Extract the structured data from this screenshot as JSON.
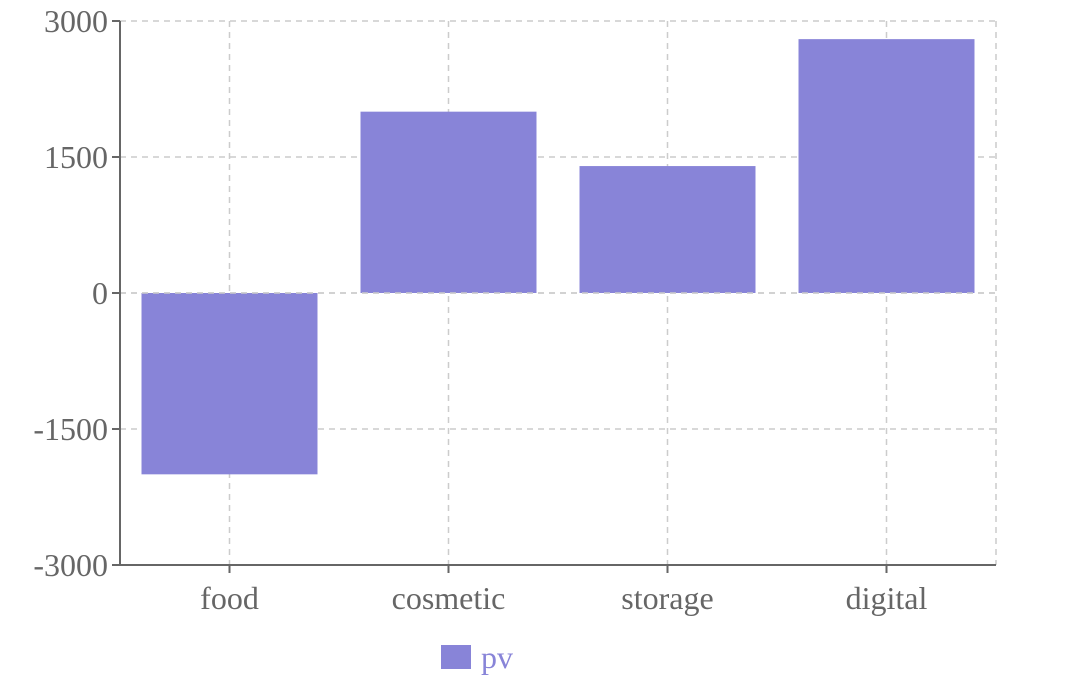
{
  "chart_data": {
    "type": "bar",
    "categories": [
      "food",
      "cosmetic",
      "storage",
      "digital"
    ],
    "series": [
      {
        "name": "pv",
        "values": [
          -2000,
          2000,
          1400,
          2800
        ]
      }
    ],
    "ylim": [
      -3000,
      3000
    ],
    "yticks": [
      "3000",
      "1500",
      "0",
      "-1500",
      "-3000"
    ],
    "ytick_values": [
      3000,
      1500,
      0,
      -1500,
      -3000
    ],
    "grid": true,
    "legend_position": "bottom-center",
    "colors": {
      "bar": "#8884d8",
      "axis": "#666666",
      "grid": "#cccccc"
    }
  }
}
